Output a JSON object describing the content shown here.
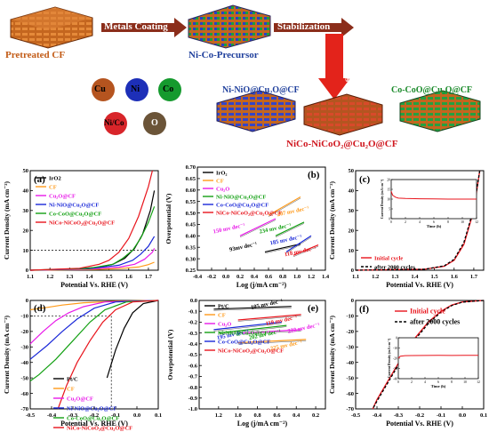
{
  "schematic": {
    "steps": [
      "Metals Coating",
      "Stabilization",
      "Annealing"
    ],
    "materials": {
      "pretreated": "Pretreated CF",
      "precursor": "Ni-Co-Precursor",
      "ni_nio": "Ni-NiO@Cu₂O@CF",
      "co_coo": "Co-CoO@Cu₂O@CF",
      "nico": "NiCo-NiCoO₂@Cu₂O@CF"
    },
    "atoms": [
      {
        "label": "Cu",
        "color": "#b5541f"
      },
      {
        "label": "Ni",
        "color": "#1d2fb8"
      },
      {
        "label": "Co",
        "color": "#159a2e"
      },
      {
        "label": "Ni/Co",
        "color": "#d8252a"
      },
      {
        "label": "O",
        "color": "#6b5438"
      }
    ],
    "colors": {
      "step_box": "#8b2d1a",
      "arrow_down": "#e3231b",
      "lbl_orange": "#c25b16",
      "lbl_blue": "#1f3f9c",
      "lbl_green": "#1a8a2a",
      "lbl_red": "#d0171f"
    }
  },
  "chart_data": [
    {
      "id": "a",
      "panel_label": "(a)",
      "type": "line",
      "xlabel": "Potential Vs. RHE (V)",
      "ylabel": "Current Density (mA cm⁻²)",
      "xlim": [
        1.1,
        1.75
      ],
      "ylim": [
        0,
        50
      ],
      "xticks": [
        "1.1",
        "1.2",
        "1.3",
        "1.4",
        "1.5",
        "1.6",
        "1.7"
      ],
      "yticks": [
        "0",
        "10",
        "20",
        "30",
        "40",
        "50"
      ],
      "reference_line": {
        "y": 10
      },
      "series": [
        {
          "name": "IrO2",
          "color": "#000000",
          "x": [
            1.1,
            1.3,
            1.45,
            1.52,
            1.58,
            1.63,
            1.67,
            1.71,
            1.73
          ],
          "y": [
            0,
            0.4,
            1.5,
            3,
            6,
            11,
            18,
            30,
            40
          ]
        },
        {
          "name": "CF",
          "color": "#ff9a1a",
          "x": [
            1.1,
            1.4,
            1.55,
            1.65,
            1.7,
            1.73
          ],
          "y": [
            0,
            0.3,
            0.8,
            1.6,
            2.8,
            4
          ]
        },
        {
          "name": "Cu₂O@CF",
          "color": "#e818e8",
          "x": [
            1.1,
            1.4,
            1.55,
            1.63,
            1.68,
            1.72,
            1.73
          ],
          "y": [
            0,
            0.6,
            1.5,
            3,
            5.5,
            9,
            11
          ]
        },
        {
          "name": "Ni-NiO@Cu₂O@CF",
          "color": "#1a28d8",
          "x": [
            1.1,
            1.4,
            1.55,
            1.62,
            1.66,
            1.7,
            1.73
          ],
          "y": [
            0,
            0.8,
            2.5,
            5,
            8,
            12,
            17
          ]
        },
        {
          "name": "Co-CoO@Cu₂O@CF",
          "color": "#12a012",
          "x": [
            1.1,
            1.4,
            1.52,
            1.57,
            1.62,
            1.66,
            1.7,
            1.73
          ],
          "y": [
            0,
            1,
            3,
            6,
            10,
            16,
            24,
            32
          ]
        },
        {
          "name": "NiCo-NiCoO₂@Cu₂O@CF",
          "color": "#e8141c",
          "x": [
            1.1,
            1.35,
            1.45,
            1.5,
            1.55,
            1.6,
            1.65,
            1.7,
            1.72
          ],
          "y": [
            0,
            1,
            3,
            5,
            9,
            16,
            27,
            42,
            50
          ]
        }
      ]
    },
    {
      "id": "b",
      "panel_label": "(b)",
      "type": "line",
      "xlabel": "Log (j/mA cm⁻²)",
      "ylabel": "Overpotential (V)",
      "xlim": [
        -0.4,
        1.4
      ],
      "ylim": [
        0.25,
        0.7
      ],
      "xticks": [
        "-0.4",
        "-0.2",
        "0.0",
        "0.2",
        "0.4",
        "0.6",
        "0.8",
        "1.0",
        "1.2",
        "1.4"
      ],
      "yticks": [
        "0.25",
        "0.30",
        "0.35",
        "0.40",
        "0.45",
        "0.50",
        "0.55",
        "0.60",
        "0.65",
        "0.70"
      ],
      "series": [
        {
          "name": "IrO₂",
          "color": "#000000",
          "x": [
            0.55,
            1.05
          ],
          "y": [
            0.33,
            0.365
          ]
        },
        {
          "name": "CF",
          "color": "#ff9a1a",
          "x": [
            0.6,
            1.05
          ],
          "y": [
            0.49,
            0.57
          ]
        },
        {
          "name": "Cu₂O",
          "color": "#e818e8",
          "x": [
            0.2,
            0.7
          ],
          "y": [
            0.4,
            0.475
          ]
        },
        {
          "name": "Ni-NiO@Cu₂O@CF",
          "color": "#12a012",
          "x": [
            0.7,
            1.1
          ],
          "y": [
            0.4,
            0.46
          ]
        },
        {
          "name": "Co-CoO@Cu₂O@CF",
          "color": "#1a28d8",
          "x": [
            0.85,
            1.2
          ],
          "y": [
            0.33,
            0.4
          ]
        },
        {
          "name": "NiCo-NiCoO₂@Cu₂O@CF",
          "color": "#e8141c",
          "x": [
            0.95,
            1.3
          ],
          "y": [
            0.315,
            0.36
          ]
        }
      ],
      "annotations": [
        {
          "text": "93mv dec⁻¹",
          "color": "#000000",
          "x": 0.25,
          "y": 0.345
        },
        {
          "text": "150 mv dec⁻¹",
          "color": "#e818e8",
          "x": 0.05,
          "y": 0.425
        },
        {
          "text": "207 mv dec⁻¹",
          "color": "#ff9a1a",
          "x": 0.95,
          "y": 0.5
        },
        {
          "text": "234 mv dec⁻¹",
          "color": "#12a012",
          "x": 0.7,
          "y": 0.425
        },
        {
          "text": "185 mv dec⁻¹",
          "color": "#1a28d8",
          "x": 0.85,
          "y": 0.375
        },
        {
          "text": "118 mv dec⁻¹",
          "color": "#e8141c",
          "x": 1.05,
          "y": 0.325
        }
      ]
    },
    {
      "id": "c",
      "panel_label": "(c)",
      "type": "line",
      "xlabel": "Potential Vs. RHE (V)",
      "ylabel": "Current Density (mA cm⁻²)",
      "xlim": [
        1.1,
        1.75
      ],
      "ylim": [
        0,
        50
      ],
      "xticks": [
        "1.1",
        "1.2",
        "1.3",
        "1.4",
        "1.5",
        "1.6",
        "1.7"
      ],
      "yticks": [
        "0",
        "10",
        "20",
        "30",
        "40",
        "50"
      ],
      "series": [
        {
          "name": "Initial cycle",
          "color": "#e8141c",
          "x": [
            1.1,
            1.45,
            1.55,
            1.6,
            1.65,
            1.7,
            1.73
          ],
          "y": [
            0,
            0.5,
            2,
            5,
            13,
            30,
            50
          ]
        },
        {
          "name": "after 2000 cycles",
          "color": "#000000",
          "x": [
            1.1,
            1.45,
            1.55,
            1.6,
            1.65,
            1.7,
            1.73
          ],
          "y": [
            0,
            0.5,
            2.2,
            5.5,
            14,
            31,
            50
          ]
        }
      ],
      "inset": {
        "xlabel": "Time (h)",
        "ylabel": "Current Density (mA cm⁻²)",
        "xlim": [
          0,
          12
        ],
        "ylim": [
          0,
          20
        ],
        "xticks": [
          "0",
          "2",
          "4",
          "6",
          "8",
          "10",
          "12"
        ],
        "yticks": [
          "0",
          "5",
          "10",
          "15",
          "20"
        ],
        "series": [
          {
            "color": "#e8141c",
            "x": [
              0,
              0.2,
              0.6,
              1,
              2,
              4,
              6,
              8,
              10,
              12
            ],
            "y": [
              14,
              12,
              11,
              10.5,
              10.3,
              10.2,
              10.1,
              10,
              10,
              10
            ]
          }
        ]
      }
    },
    {
      "id": "d",
      "panel_label": "(d)",
      "type": "line",
      "xlabel": "Potential Vs. RHE (V)",
      "ylabel": "Current Density (mA cm⁻²)",
      "xlim": [
        -0.5,
        0.1
      ],
      "ylim": [
        -70,
        0
      ],
      "xticks": [
        "-0.5",
        "-0.4",
        "-0.3",
        "-0.2",
        "-0.1",
        "0.0",
        "0.1"
      ],
      "yticks": [
        "0",
        "-10",
        "-20",
        "-30",
        "-40",
        "-50",
        "-60",
        "-70"
      ],
      "reference_line": {
        "y": -10,
        "x": -0.12
      },
      "series": [
        {
          "name": "Pt/C",
          "color": "#000000",
          "x": [
            0.1,
            0.03,
            -0.02,
            -0.06,
            -0.1,
            -0.14
          ],
          "y": [
            0,
            -2,
            -8,
            -18,
            -32,
            -50
          ]
        },
        {
          "name": "CF",
          "color": "#ff9a1a",
          "x": [
            0.1,
            -0.1,
            -0.25,
            -0.35,
            -0.42,
            -0.5
          ],
          "y": [
            0,
            -0.5,
            -1.5,
            -3,
            -4.5,
            -6
          ]
        },
        {
          "name": "Cu₂O@CF",
          "color": "#e818e8",
          "x": [
            0.1,
            -0.15,
            -0.25,
            -0.32,
            -0.38,
            -0.44,
            -0.5
          ],
          "y": [
            0,
            -1,
            -4,
            -8,
            -13,
            -20,
            -28
          ]
        },
        {
          "name": "Ni-NiO@Cu₂O@CF",
          "color": "#1a28d8",
          "x": [
            0.1,
            -0.1,
            -0.2,
            -0.28,
            -0.35,
            -0.42,
            -0.5
          ],
          "y": [
            0,
            -1,
            -5,
            -12,
            -20,
            -29,
            -38
          ]
        },
        {
          "name": "Co-CoO@Cu₂O@CF",
          "color": "#12a012",
          "x": [
            0.1,
            -0.05,
            -0.15,
            -0.22,
            -0.3,
            -0.38,
            -0.46,
            -0.5
          ],
          "y": [
            0,
            -1,
            -6,
            -14,
            -26,
            -38,
            -48,
            -52
          ]
        },
        {
          "name": "NiCo-NiCoO₂@Cu₂O@CF",
          "color": "#e8141c",
          "x": [
            0.1,
            -0.02,
            -0.1,
            -0.16,
            -0.22,
            -0.28,
            -0.33,
            -0.37
          ],
          "y": [
            0,
            -1,
            -6,
            -14,
            -26,
            -40,
            -55,
            -70
          ]
        }
      ]
    },
    {
      "id": "e",
      "panel_label": "(e)",
      "type": "line",
      "xlabel": "Log (j/mA cm⁻²)",
      "ylabel": "Overpotential (V)",
      "xlim": [
        1.4,
        0.1
      ],
      "ylim": [
        -1.0,
        0.0
      ],
      "xticks": [
        "1.2",
        "1.0",
        "0.8",
        "0.6",
        "0.4",
        "0.2",
        "0.0"
      ],
      "yticks": [
        "-1.0",
        "-0.9",
        "-0.8",
        "-0.7",
        "-0.6",
        "-0.5",
        "-0.4",
        "-0.3",
        "-0.2",
        "-0.1",
        "0.0"
      ],
      "series": [
        {
          "name": "Pt/C",
          "color": "#000000",
          "x": [
            1.25,
            0.45
          ],
          "y": [
            -0.08,
            -0.055
          ]
        },
        {
          "name": "CF",
          "color": "#ff9a1a",
          "x": [
            1.0,
            0.3
          ],
          "y": [
            -0.39,
            -0.36
          ]
        },
        {
          "name": "Cu₂O",
          "color": "#e818e8",
          "x": [
            0.95,
            0.35
          ],
          "y": [
            -0.3,
            -0.27
          ]
        },
        {
          "name": "Ni-NiO@Cu₂O@CF",
          "color": "#12a012",
          "x": [
            1.2,
            0.5
          ],
          "y": [
            -0.3,
            -0.23
          ]
        },
        {
          "name": "Co-CoO@Cu₂O@CF",
          "color": "#1a28d8",
          "x": [
            1.25,
            0.55
          ],
          "y": [
            -0.27,
            -0.2
          ]
        },
        {
          "name": "NiCo-NiCoO₂@Cu₂O@CF",
          "color": "#e8141c",
          "x": [
            1.0,
            0.35
          ],
          "y": [
            -0.18,
            -0.13
          ]
        }
      ],
      "annotations": [
        {
          "text": "225 mv dec⁻¹",
          "color": "#ff9a1a",
          "x": 0.5,
          "y": -0.43
        },
        {
          "text": "195 mv dec⁻¹",
          "color": "#1a28d8",
          "x": 1.05,
          "y": -0.33
        },
        {
          "text": "202 mv dec⁻¹",
          "color": "#12a012",
          "x": 0.72,
          "y": -0.33
        },
        {
          "text": "222 mv dec⁻¹",
          "color": "#e818e8",
          "x": 0.32,
          "y": -0.27
        },
        {
          "text": "119 mv dec⁻¹",
          "color": "#e8141c",
          "x": 0.55,
          "y": -0.2
        },
        {
          "text": "105 mv dec⁻¹",
          "color": "#000000",
          "x": 0.7,
          "y": -0.05
        }
      ]
    },
    {
      "id": "f",
      "panel_label": "(f)",
      "type": "line",
      "xlabel": "Potential Vs. RHE (V)",
      "ylabel": "Current Density (mA cm⁻²)",
      "xlim": [
        -0.5,
        0.1
      ],
      "ylim": [
        -70,
        0
      ],
      "xticks": [
        "-0.5",
        "-0.4",
        "-0.3",
        "-0.2",
        "-0.1",
        "0.0",
        "0.1"
      ],
      "yticks": [
        "0",
        "-10",
        "-20",
        "-30",
        "-40",
        "-50",
        "-60",
        "-70"
      ],
      "series": [
        {
          "name": "Initial cycle",
          "color": "#e8141c",
          "x": [
            0.1,
            0.0,
            -0.05,
            -0.1,
            -0.16,
            -0.22,
            -0.28,
            -0.34,
            -0.4,
            -0.42
          ],
          "y": [
            0,
            -1,
            -3,
            -7,
            -14,
            -24,
            -36,
            -50,
            -64,
            -70
          ]
        },
        {
          "name": "after 2000 cycles",
          "color": "#000000",
          "x": [
            0.1,
            0.0,
            -0.05,
            -0.1,
            -0.16,
            -0.22,
            -0.28,
            -0.34,
            -0.4,
            -0.42
          ],
          "y": [
            0,
            -1.1,
            -3.3,
            -7.5,
            -15,
            -25,
            -37,
            -51,
            -65,
            -70
          ]
        }
      ],
      "inset": {
        "xlabel": "Time (h)",
        "ylabel": "Current Density (mA cm⁻²)",
        "xlim": [
          0,
          12
        ],
        "ylim": [
          -40,
          0
        ],
        "xticks": [
          "0",
          "2",
          "4",
          "6",
          "8",
          "10",
          "12"
        ],
        "yticks": [
          "0",
          "-10",
          "-20",
          "-30",
          "-40"
        ],
        "series": [
          {
            "color": "#e8141c",
            "x": [
              0,
              0.3,
              1,
              2,
              4,
              6,
              8,
              10,
              12
            ],
            "y": [
              -20,
              -18,
              -17.5,
              -17.4,
              -17.3,
              -17.2,
              -17.3,
              -17.2,
              -17.2
            ]
          }
        ]
      }
    }
  ]
}
